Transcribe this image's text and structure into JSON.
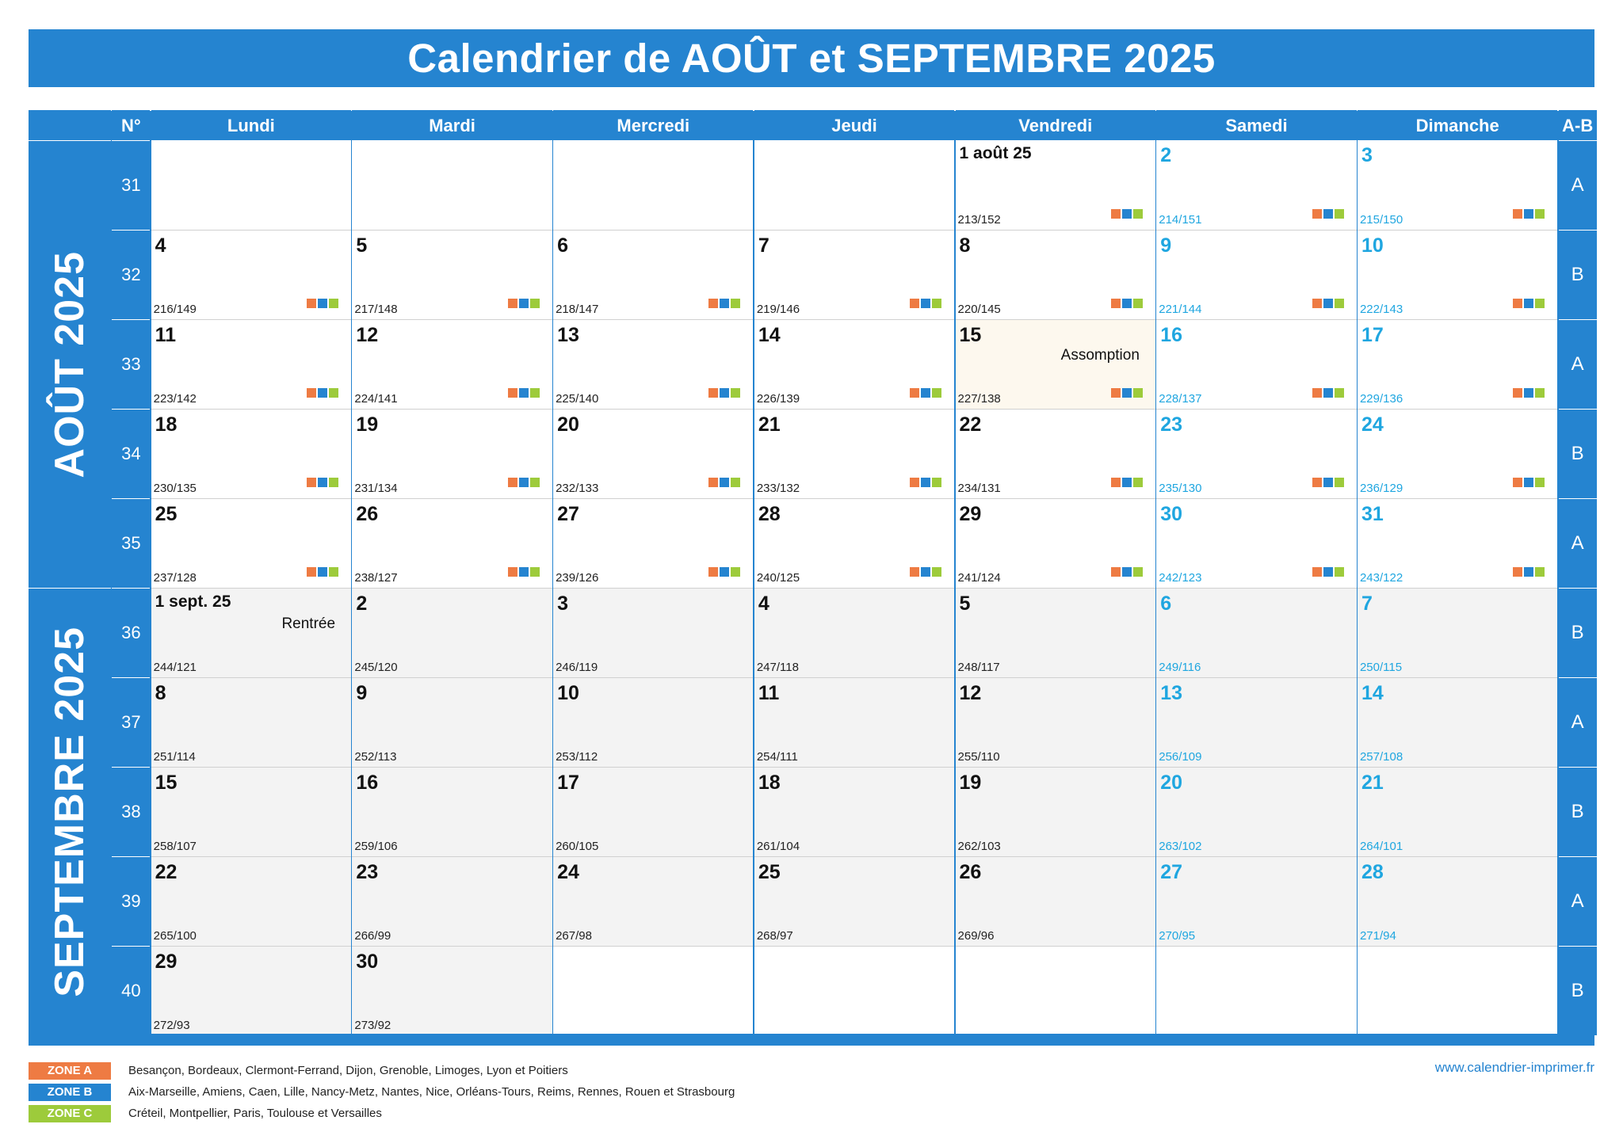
{
  "title": "Calendrier de AOÛT et SEPTEMBRE 2025",
  "colors": {
    "primary": "#2584d0",
    "weekend": "#1fa6e0",
    "september_bg": "#f3f3f3",
    "holiday_bg": "#fdf8ee",
    "zone_a": "#ee7b43",
    "zone_b": "#2584d0",
    "zone_c": "#9dcb3b"
  },
  "header": {
    "week_label": "N°",
    "ab_label": "A-B",
    "days": [
      "Lundi",
      "Mardi",
      "Mercredi",
      "Jeudi",
      "Vendredi",
      "Samedi",
      "Dimanche"
    ]
  },
  "months": [
    {
      "label": "AOÛT 2025",
      "rows": 5
    },
    {
      "label": "SEPTEMBRE 2025",
      "rows": 5
    }
  ],
  "weeks": [
    {
      "num": "31",
      "ab": "A",
      "month": 0,
      "days": [
        null,
        null,
        null,
        null,
        {
          "label": "1 août 25",
          "info": "213/152",
          "zones": true
        },
        {
          "label": "2",
          "info": "214/151",
          "zones": true,
          "weekend": true
        },
        {
          "label": "3",
          "info": "215/150",
          "zones": true,
          "weekend": true
        }
      ]
    },
    {
      "num": "32",
      "ab": "B",
      "month": 0,
      "days": [
        {
          "label": "4",
          "info": "216/149",
          "zones": true
        },
        {
          "label": "5",
          "info": "217/148",
          "zones": true
        },
        {
          "label": "6",
          "info": "218/147",
          "zones": true
        },
        {
          "label": "7",
          "info": "219/146",
          "zones": true
        },
        {
          "label": "8",
          "info": "220/145",
          "zones": true
        },
        {
          "label": "9",
          "info": "221/144",
          "zones": true,
          "weekend": true
        },
        {
          "label": "10",
          "info": "222/143",
          "zones": true,
          "weekend": true
        }
      ]
    },
    {
      "num": "33",
      "ab": "A",
      "month": 0,
      "days": [
        {
          "label": "11",
          "info": "223/142",
          "zones": true
        },
        {
          "label": "12",
          "info": "224/141",
          "zones": true
        },
        {
          "label": "13",
          "info": "225/140",
          "zones": true
        },
        {
          "label": "14",
          "info": "226/139",
          "zones": true
        },
        {
          "label": "15",
          "info": "227/138",
          "zones": true,
          "event": "Assomption",
          "holiday": true
        },
        {
          "label": "16",
          "info": "228/137",
          "zones": true,
          "weekend": true
        },
        {
          "label": "17",
          "info": "229/136",
          "zones": true,
          "weekend": true
        }
      ]
    },
    {
      "num": "34",
      "ab": "B",
      "month": 0,
      "days": [
        {
          "label": "18",
          "info": "230/135",
          "zones": true
        },
        {
          "label": "19",
          "info": "231/134",
          "zones": true
        },
        {
          "label": "20",
          "info": "232/133",
          "zones": true
        },
        {
          "label": "21",
          "info": "233/132",
          "zones": true
        },
        {
          "label": "22",
          "info": "234/131",
          "zones": true
        },
        {
          "label": "23",
          "info": "235/130",
          "zones": true,
          "weekend": true
        },
        {
          "label": "24",
          "info": "236/129",
          "zones": true,
          "weekend": true
        }
      ]
    },
    {
      "num": "35",
      "ab": "A",
      "month": 0,
      "days": [
        {
          "label": "25",
          "info": "237/128",
          "zones": true
        },
        {
          "label": "26",
          "info": "238/127",
          "zones": true
        },
        {
          "label": "27",
          "info": "239/126",
          "zones": true
        },
        {
          "label": "28",
          "info": "240/125",
          "zones": true
        },
        {
          "label": "29",
          "info": "241/124",
          "zones": true
        },
        {
          "label": "30",
          "info": "242/123",
          "zones": true,
          "weekend": true
        },
        {
          "label": "31",
          "info": "243/122",
          "zones": true,
          "weekend": true
        }
      ]
    },
    {
      "num": "36",
      "ab": "B",
      "month": 1,
      "days": [
        {
          "label": "1 sept. 25",
          "info": "244/121",
          "event": "Rentrée"
        },
        {
          "label": "2",
          "info": "245/120"
        },
        {
          "label": "3",
          "info": "246/119"
        },
        {
          "label": "4",
          "info": "247/118"
        },
        {
          "label": "5",
          "info": "248/117"
        },
        {
          "label": "6",
          "info": "249/116",
          "weekend": true
        },
        {
          "label": "7",
          "info": "250/115",
          "weekend": true
        }
      ]
    },
    {
      "num": "37",
      "ab": "A",
      "month": 1,
      "days": [
        {
          "label": "8",
          "info": "251/114"
        },
        {
          "label": "9",
          "info": "252/113"
        },
        {
          "label": "10",
          "info": "253/112"
        },
        {
          "label": "11",
          "info": "254/111"
        },
        {
          "label": "12",
          "info": "255/110"
        },
        {
          "label": "13",
          "info": "256/109",
          "weekend": true
        },
        {
          "label": "14",
          "info": "257/108",
          "weekend": true
        }
      ]
    },
    {
      "num": "38",
      "ab": "B",
      "month": 1,
      "days": [
        {
          "label": "15",
          "info": "258/107"
        },
        {
          "label": "16",
          "info": "259/106"
        },
        {
          "label": "17",
          "info": "260/105"
        },
        {
          "label": "18",
          "info": "261/104"
        },
        {
          "label": "19",
          "info": "262/103"
        },
        {
          "label": "20",
          "info": "263/102",
          "weekend": true
        },
        {
          "label": "21",
          "info": "264/101",
          "weekend": true
        }
      ]
    },
    {
      "num": "39",
      "ab": "A",
      "month": 1,
      "days": [
        {
          "label": "22",
          "info": "265/100"
        },
        {
          "label": "23",
          "info": "266/99"
        },
        {
          "label": "24",
          "info": "267/98"
        },
        {
          "label": "25",
          "info": "268/97"
        },
        {
          "label": "26",
          "info": "269/96"
        },
        {
          "label": "27",
          "info": "270/95",
          "weekend": true
        },
        {
          "label": "28",
          "info": "271/94",
          "weekend": true
        }
      ]
    },
    {
      "num": "40",
      "ab": "B",
      "month": 1,
      "days": [
        {
          "label": "29",
          "info": "272/93"
        },
        {
          "label": "30",
          "info": "273/92"
        },
        null,
        null,
        null,
        null,
        null
      ]
    }
  ],
  "legend": [
    {
      "zone": "ZONE A",
      "color": "#ee7b43",
      "text": "Besançon, Bordeaux, Clermont-Ferrand, Dijon, Grenoble, Limoges, Lyon et Poitiers"
    },
    {
      "zone": "ZONE B",
      "color": "#2584d0",
      "text": "Aix-Marseille, Amiens, Caen, Lille, Nancy-Metz, Nantes, Nice, Orléans-Tours, Reims, Rennes, Rouen et Strasbourg"
    },
    {
      "zone": "ZONE C",
      "color": "#9dcb3b",
      "text": "Créteil, Montpellier, Paris, Toulouse et Versailles"
    }
  ],
  "website": "www.calendrier-imprimer.fr"
}
